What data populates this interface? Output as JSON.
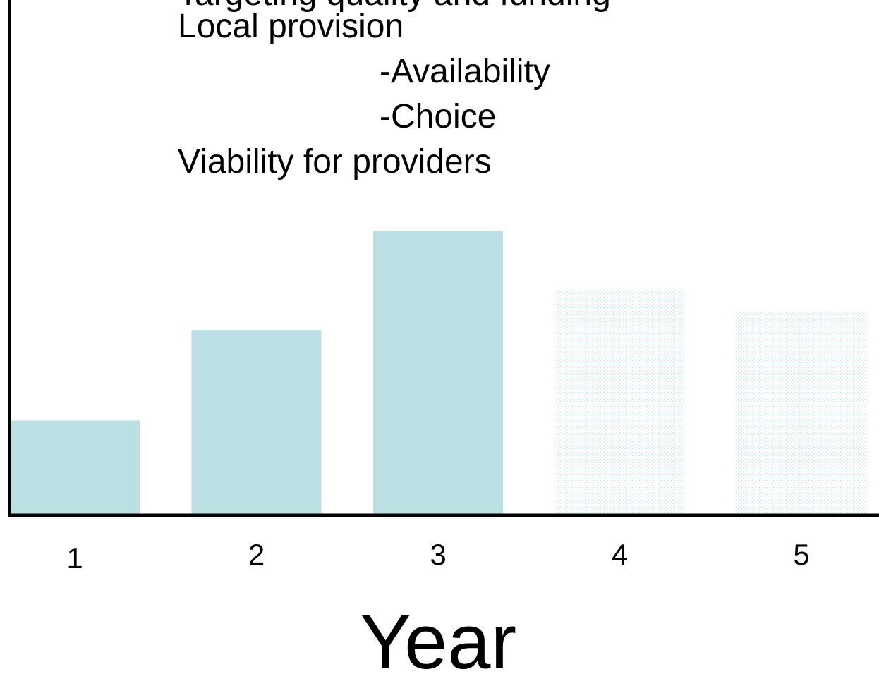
{
  "chart_data": {
    "type": "bar",
    "title": "",
    "categories": [
      "1",
      "2",
      "3",
      "4",
      "5"
    ],
    "series": [
      {
        "values": [
          21,
          41,
          63,
          50,
          45
        ],
        "fill": [
          "solid",
          "solid",
          "solid",
          "dotted",
          "dotted"
        ]
      }
    ],
    "xlabel": "Year",
    "ylabel": "",
    "ylim": [
      0,
      100
    ],
    "grid": false,
    "legend": "none",
    "annotations": [
      "Local provision",
      "-Availability",
      "-Choice",
      "Viability for providers"
    ],
    "colors": {
      "bar": "#bae0e3",
      "dots": "#bfe2e6",
      "axis": "#000000"
    }
  }
}
